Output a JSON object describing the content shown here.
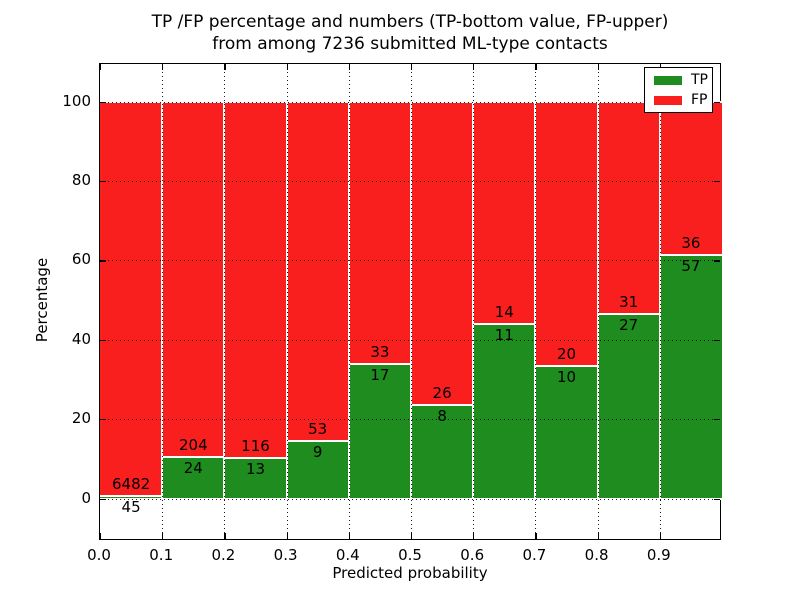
{
  "figure": {
    "title_line1": "TP /FP percentage and numbers (TP-bottom value, FP-upper)",
    "title_line2": "from among 7236 submitted ML-type contacts",
    "xlabel": "Predicted probability",
    "ylabel": "Percentage"
  },
  "legend": {
    "items": [
      {
        "label": "TP",
        "color": "#1e8c1e"
      },
      {
        "label": "FP",
        "color": "#fa1f1f"
      }
    ]
  },
  "chart_data": {
    "type": "bar",
    "variant": "stacked-percentage",
    "title": "TP /FP percentage and numbers (TP-bottom value, FP-upper) from among 7236 submitted ML-type contacts",
    "xlabel": "Predicted probability",
    "ylabel": "Percentage",
    "xlim": [
      0.0,
      1.0
    ],
    "ylim": [
      -10,
      110
    ],
    "grid": true,
    "grid_style": "dotted",
    "legend_position": "upper right",
    "bar_edge_color": "#ffffff",
    "x_tick_labels": [
      "0.0",
      "0.1",
      "0.2",
      "0.3",
      "0.4",
      "0.5",
      "0.6",
      "0.7",
      "0.8",
      "0.9"
    ],
    "y_ticks": [
      0,
      20,
      40,
      60,
      80,
      100
    ],
    "bin_width": 0.1,
    "series": [
      {
        "name": "TP",
        "color": "#1e8c1e",
        "counts": [
          45,
          24,
          13,
          9,
          17,
          8,
          11,
          10,
          27,
          57
        ]
      },
      {
        "name": "FP",
        "color": "#fa1f1f",
        "counts": [
          6482,
          204,
          116,
          53,
          33,
          26,
          14,
          20,
          31,
          36
        ]
      }
    ],
    "tp_percent_computed": [
      0.69,
      10.53,
      10.08,
      14.52,
      34.0,
      23.53,
      44.0,
      33.33,
      46.55,
      61.29
    ],
    "total_contacts": 7236
  }
}
